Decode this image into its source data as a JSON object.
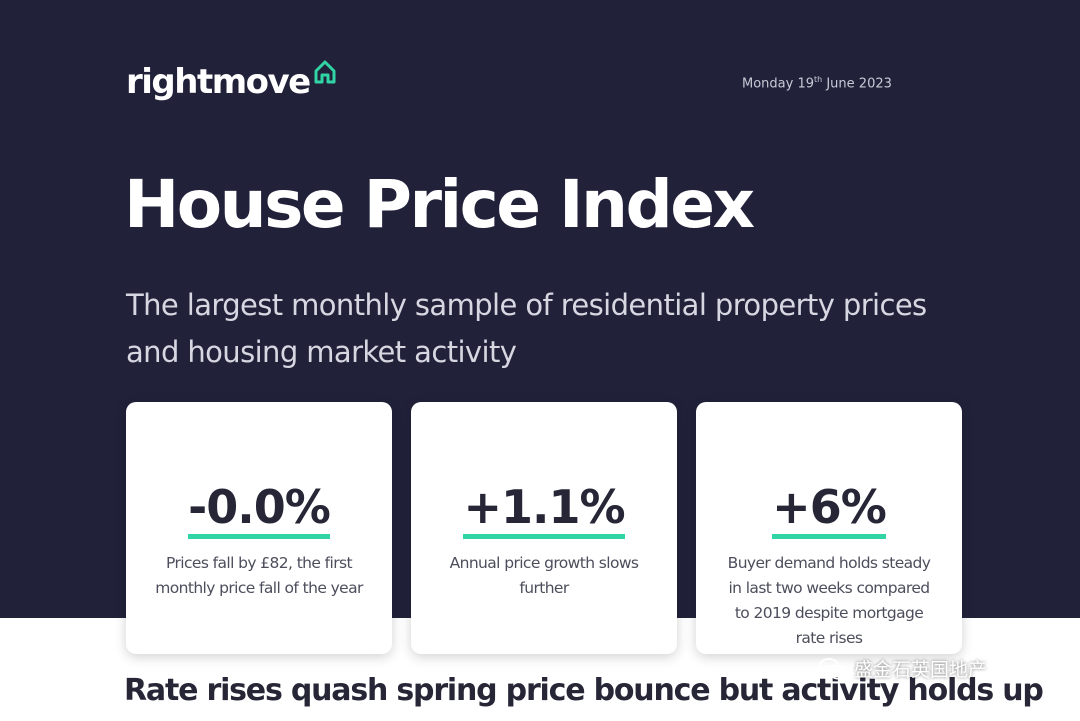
{
  "brand": {
    "name": "rightmove",
    "accent_color": "#31d4a4",
    "icon": "house-icon"
  },
  "header": {
    "date_prefix": "Monday 19",
    "date_ordinal": "th",
    "date_suffix": " June 2023"
  },
  "title": "House Price Index",
  "subtitle": "The largest monthly sample of residential property prices and housing market activity",
  "cards": [
    {
      "value": "-0.0%",
      "description": "Prices fall by £82, the first monthly price fall of the year"
    },
    {
      "value": "+1.1%",
      "description": "Annual price growth slows further"
    },
    {
      "value": "+6%",
      "description": "Buyer demand holds steady in last two weeks compared to 2019 despite mortgage rate rises"
    }
  ],
  "headline": "Rate rises quash spring price bounce but activity holds up",
  "watermark": {
    "text": "盛金石英国地产",
    "icon": "wechat-icon"
  },
  "colors": {
    "hero_bg": "#21223a",
    "text_dark": "#262637",
    "card_bg": "#ffffff"
  }
}
